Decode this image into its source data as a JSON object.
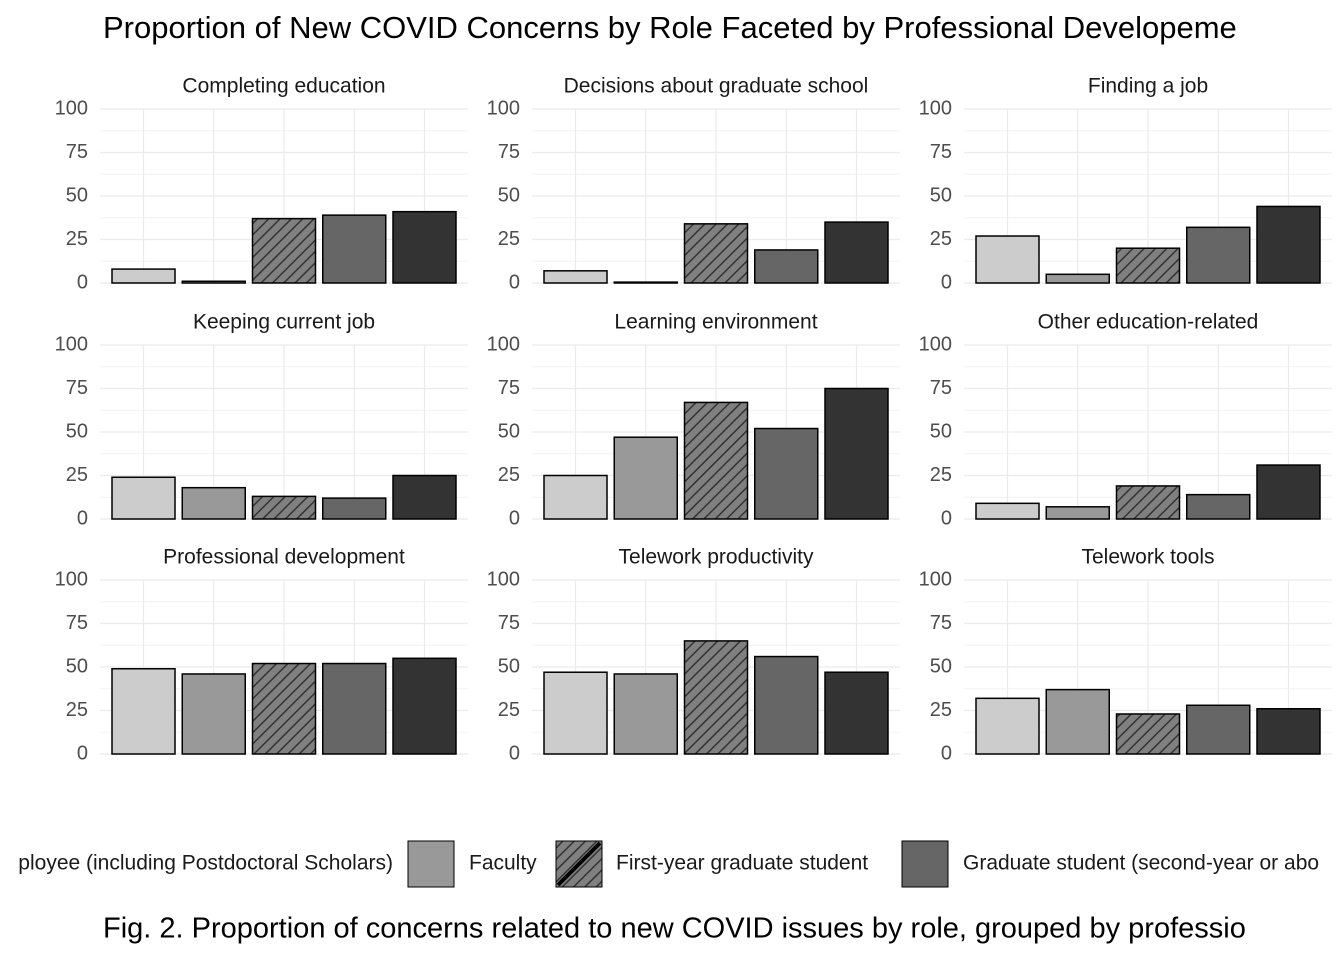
{
  "chart_data": {
    "type": "bar",
    "title": "Proportion of New COVID Concerns by Role Faceted by Professional Developeme",
    "caption": "Fig. 2. Proportion of concerns related to new COVID issues by role, grouped by professio",
    "categories": [
      "Completing education",
      "Decisions about graduate school",
      "Finding a job",
      "Keeping current job",
      "Learning environment",
      "Other education-related",
      "Professional development",
      "Telework productivity",
      "Telework tools"
    ],
    "series": [
      {
        "name": "ployee (including Postdoctoral Scholars)",
        "color": "#cccccc",
        "values": [
          8,
          7,
          27,
          24,
          25,
          9,
          49,
          47,
          32
        ]
      },
      {
        "name": "Faculty",
        "color": "#999999",
        "values": [
          1,
          0.5,
          5,
          18,
          47,
          7,
          46,
          46,
          37
        ]
      },
      {
        "name": "First-year graduate student",
        "color": "#808080",
        "pattern": "hatch",
        "values": [
          37,
          34,
          20,
          13,
          67,
          19,
          52,
          65,
          23
        ]
      },
      {
        "name": "Graduate student (second-year or abo",
        "color": "#666666",
        "values": [
          39,
          19,
          32,
          12,
          52,
          14,
          52,
          56,
          28
        ]
      },
      {
        "name": null,
        "color": "#333333",
        "values": [
          41,
          35,
          44,
          25,
          75,
          31,
          55,
          47,
          26
        ]
      }
    ],
    "ylim": [
      0,
      100
    ],
    "yticks": [
      0,
      25,
      50,
      75,
      100
    ],
    "grid": true,
    "legend": "bottom"
  }
}
